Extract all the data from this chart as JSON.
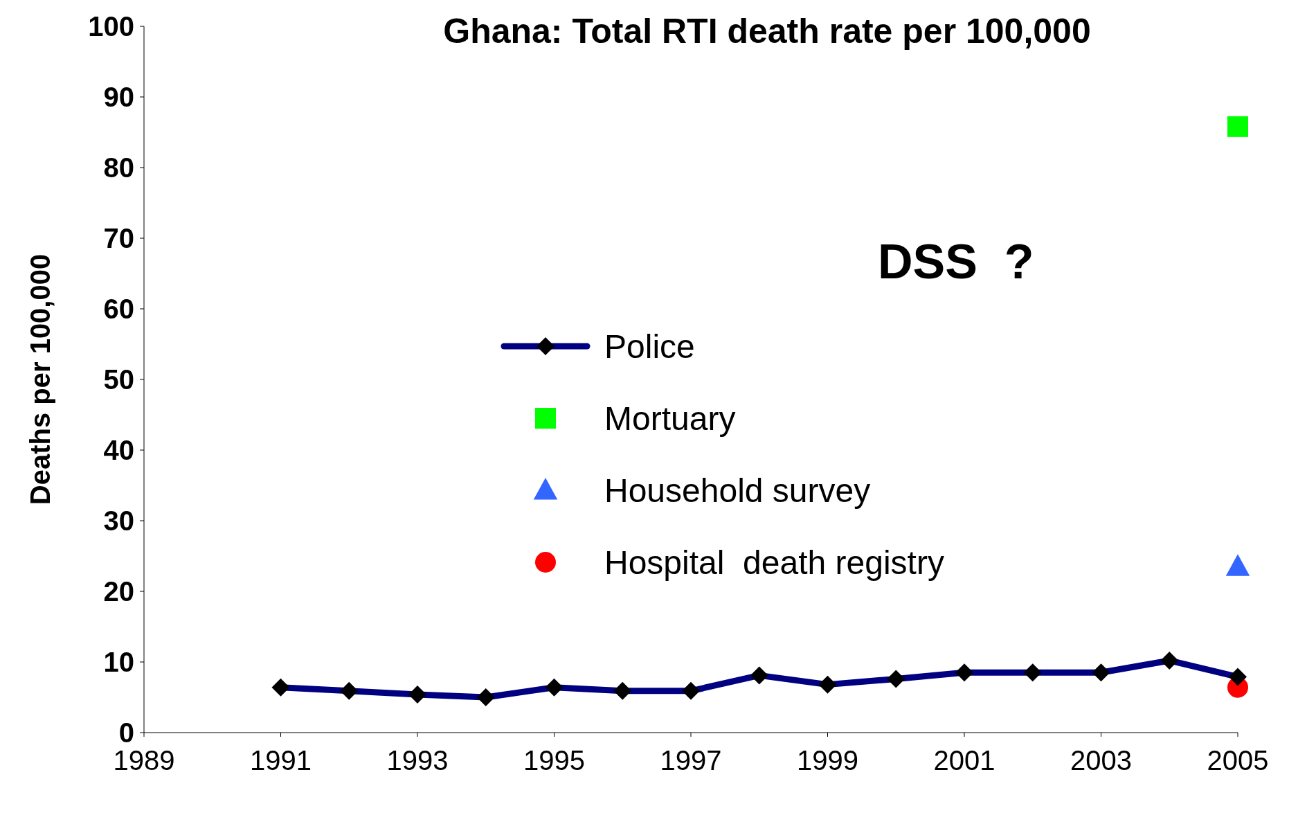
{
  "chart_data": {
    "type": "line",
    "title": "Ghana: Total RTI death rate per 100,000",
    "ylabel": "Deaths per 100,000",
    "xlim": [
      1989,
      2005
    ],
    "xticks": [
      1989,
      1991,
      1993,
      1995,
      1997,
      1999,
      2001,
      2003,
      2005
    ],
    "ylim": [
      0,
      100
    ],
    "yticks": [
      0,
      10,
      20,
      30,
      40,
      50,
      60,
      70,
      80,
      90,
      100
    ],
    "grid": false,
    "legend": "center",
    "annotations": [
      "DSS  ?"
    ],
    "series": [
      {
        "name": "Police",
        "marker": "diamond",
        "color": "#000080",
        "x": [
          1991,
          1992,
          1993,
          1994,
          1995,
          1996,
          1997,
          1998,
          1999,
          2000,
          2001,
          2002,
          2003,
          2004,
          2005
        ],
        "values": [
          6.4,
          5.9,
          5.4,
          5.0,
          6.4,
          5.9,
          5.9,
          8.1,
          6.8,
          7.6,
          8.5,
          8.5,
          8.5,
          10.2,
          7.9
        ]
      },
      {
        "name": "Mortuary",
        "type": "scatter",
        "marker": "square",
        "color": "#00ff00",
        "x": [
          2005
        ],
        "values": [
          85.8
        ]
      },
      {
        "name": "Household survey",
        "type": "scatter",
        "marker": "triangle",
        "color": "#3366ff",
        "x": [
          2005
        ],
        "values": [
          23.5
        ]
      },
      {
        "name": "Hospital  death registry",
        "type": "scatter",
        "marker": "circle",
        "color": "#ff0000",
        "x": [
          2005
        ],
        "values": [
          6.4
        ]
      }
    ]
  }
}
